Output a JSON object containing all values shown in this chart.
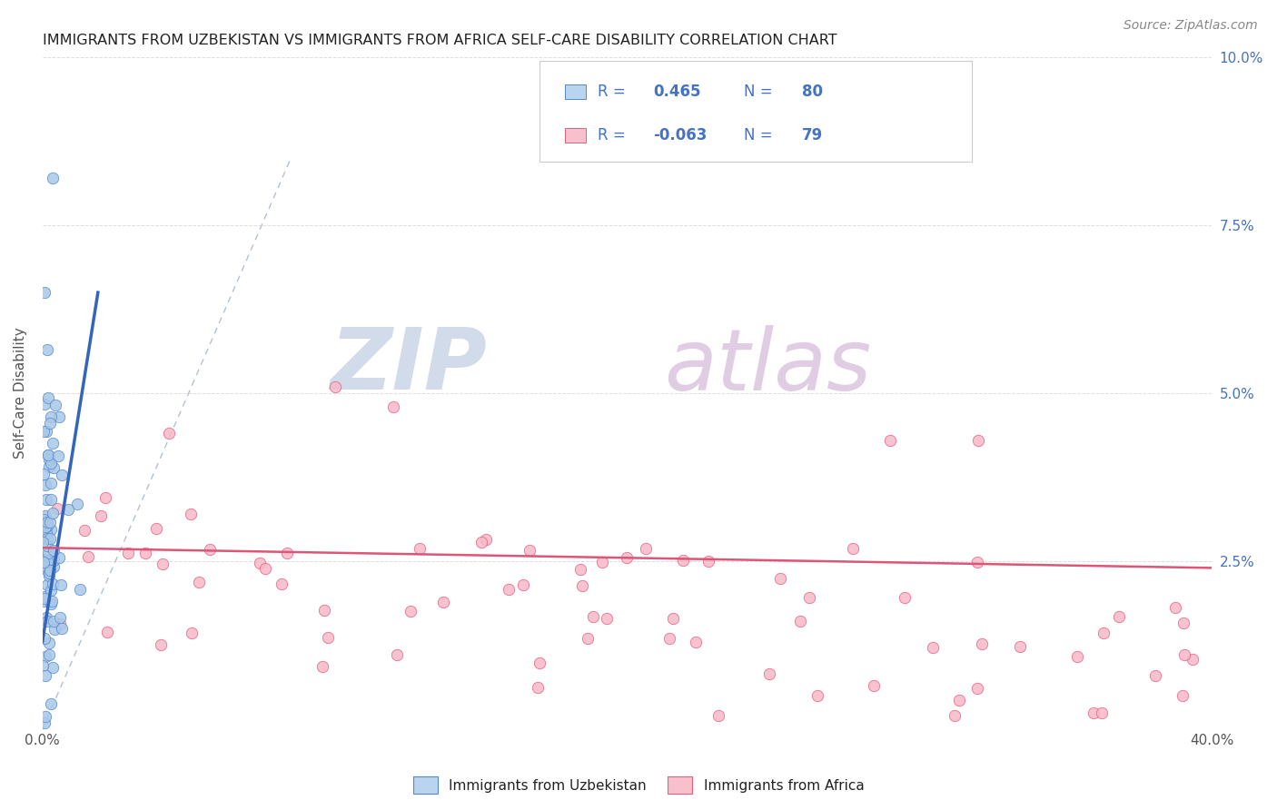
{
  "title": "IMMIGRANTS FROM UZBEKISTAN VS IMMIGRANTS FROM AFRICA SELF-CARE DISABILITY CORRELATION CHART",
  "source": "Source: ZipAtlas.com",
  "ylabel": "Self-Care Disability",
  "xlim": [
    0.0,
    0.4
  ],
  "ylim": [
    0.0,
    0.1
  ],
  "xtick_vals": [
    0.0,
    0.05,
    0.1,
    0.15,
    0.2,
    0.25,
    0.3,
    0.35,
    0.4
  ],
  "ytick_vals": [
    0.0,
    0.025,
    0.05,
    0.075,
    0.1
  ],
  "ytick_labels": [
    "",
    "2.5%",
    "5.0%",
    "7.5%",
    "10.0%"
  ],
  "color_uzb_fill": "#a8c8e8",
  "color_uzb_edge": "#5588cc",
  "color_afr_fill": "#f8b8c8",
  "color_afr_edge": "#e06080",
  "line_color_uzb": "#3366bb",
  "line_color_afr": "#dd5577",
  "diag_color": "#aabbcc",
  "legend_box_color_uzb": "#b8d4ee",
  "legend_box_color_afr": "#f8c0cc",
  "r1": "0.465",
  "n1": "80",
  "r2": "-0.063",
  "n2": "79",
  "text_color_rn": "#4472c4",
  "watermark_zip_color": "#ccd8e8",
  "watermark_atlas_color": "#ddc8e0",
  "background": "#ffffff",
  "grid_color": "#dddddd",
  "title_color": "#222222",
  "source_color": "#888888",
  "ylabel_color": "#555555",
  "tick_color": "#555555"
}
